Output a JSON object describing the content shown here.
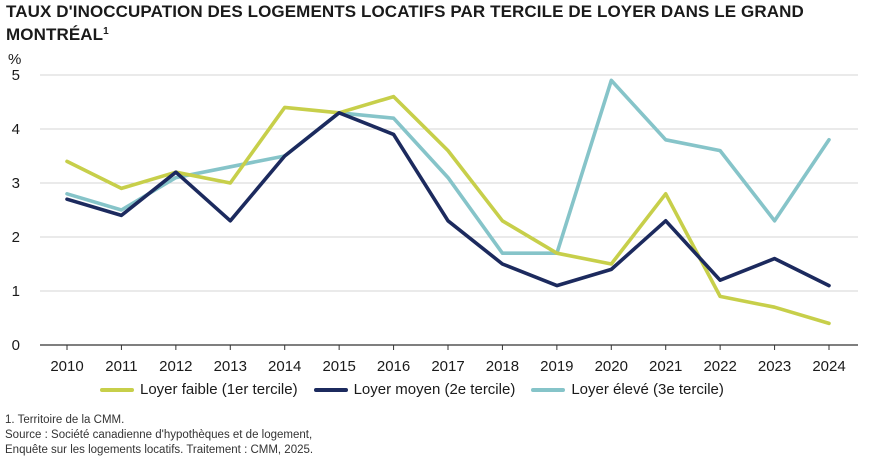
{
  "title": "TAUX D'INOCCUPATION DES LOGEMENTS LOCATIFS PAR TERCILE DE LOYER DANS LE GRAND MONTRÉAL",
  "title_note": "1",
  "notes": [
    "1. Territoire de la CMM.",
    "Source : Société canadienne d'hypothèques et de logement,",
    "Enquête sur les logements locatifs. Traitement : CMM, 2025."
  ],
  "chart_data": {
    "type": "line",
    "ylabel": "%",
    "ylim": [
      0,
      5
    ],
    "yticks": [
      "0",
      "1",
      "2",
      "3",
      "4",
      "5"
    ],
    "grid": true,
    "legend_position": "bottom",
    "categories": [
      "2010",
      "2011",
      "2012",
      "2013",
      "2014",
      "2015",
      "2016",
      "2017",
      "2018",
      "2019",
      "2020",
      "2021",
      "2022",
      "2023",
      "2024"
    ],
    "series": [
      {
        "name": "Loyer faible (1er tercile)",
        "color": "#c7cf4a",
        "values": [
          3.4,
          2.9,
          3.2,
          3.0,
          4.4,
          4.3,
          4.6,
          3.6,
          2.3,
          1.7,
          1.5,
          2.8,
          0.9,
          0.7,
          0.4
        ]
      },
      {
        "name": "Loyer moyen (2e tercile)",
        "color": "#1c2a5e",
        "values": [
          2.7,
          2.4,
          3.2,
          2.3,
          3.5,
          4.3,
          3.9,
          2.3,
          1.5,
          1.1,
          1.4,
          2.3,
          1.2,
          1.6,
          1.1
        ]
      },
      {
        "name": "Loyer élevé (3e tercile)",
        "color": "#86c4c9",
        "values": [
          2.8,
          2.5,
          3.1,
          3.3,
          3.5,
          4.3,
          4.2,
          3.1,
          1.7,
          1.7,
          4.9,
          3.8,
          3.6,
          2.3,
          3.8
        ]
      }
    ]
  }
}
